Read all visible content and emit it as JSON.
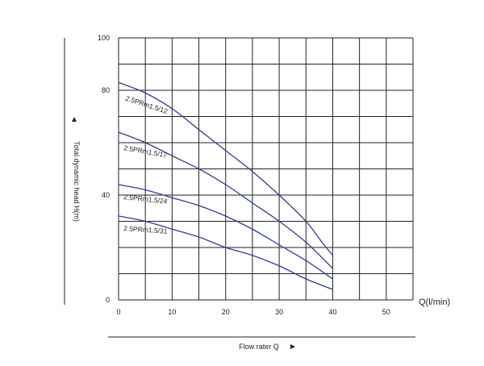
{
  "chart_data": {
    "type": "line",
    "title": "",
    "xlabel": "Flow rater Q",
    "ylabel": "Total dynamic head H(m)",
    "x_unit_label": "Q(l/min)",
    "xlim": [
      0,
      55
    ],
    "ylim": [
      0,
      100
    ],
    "xtick_labels": [
      "0",
      "10",
      "20",
      "30",
      "40",
      "50"
    ],
    "ytick_labels": [
      "0",
      "40",
      "80",
      "100"
    ],
    "grid": true,
    "series": [
      {
        "name": "2.5PRm1.5/12",
        "x": [
          0,
          5,
          10,
          15,
          20,
          25,
          30,
          35,
          38,
          40
        ],
        "y": [
          83,
          79,
          73,
          65,
          57,
          49,
          40,
          30,
          22,
          17
        ]
      },
      {
        "name": "2.5PRm1.5/17",
        "x": [
          0,
          5,
          10,
          15,
          20,
          25,
          30,
          35,
          40
        ],
        "y": [
          64,
          60,
          55,
          50,
          44,
          37,
          30,
          22,
          12
        ]
      },
      {
        "name": "2.5PRm1.5/24",
        "x": [
          0,
          5,
          10,
          15,
          20,
          25,
          30,
          35,
          40
        ],
        "y": [
          44,
          42,
          39,
          36,
          32,
          27,
          21,
          15,
          8
        ]
      },
      {
        "name": "2.5PRm1.5/31",
        "x": [
          0,
          5,
          10,
          15,
          20,
          25,
          30,
          35,
          40
        ],
        "y": [
          32,
          30,
          27,
          24,
          20,
          17,
          13,
          8,
          4
        ]
      }
    ],
    "line_color": "#2b3f8f",
    "grid_color": "#222222"
  }
}
